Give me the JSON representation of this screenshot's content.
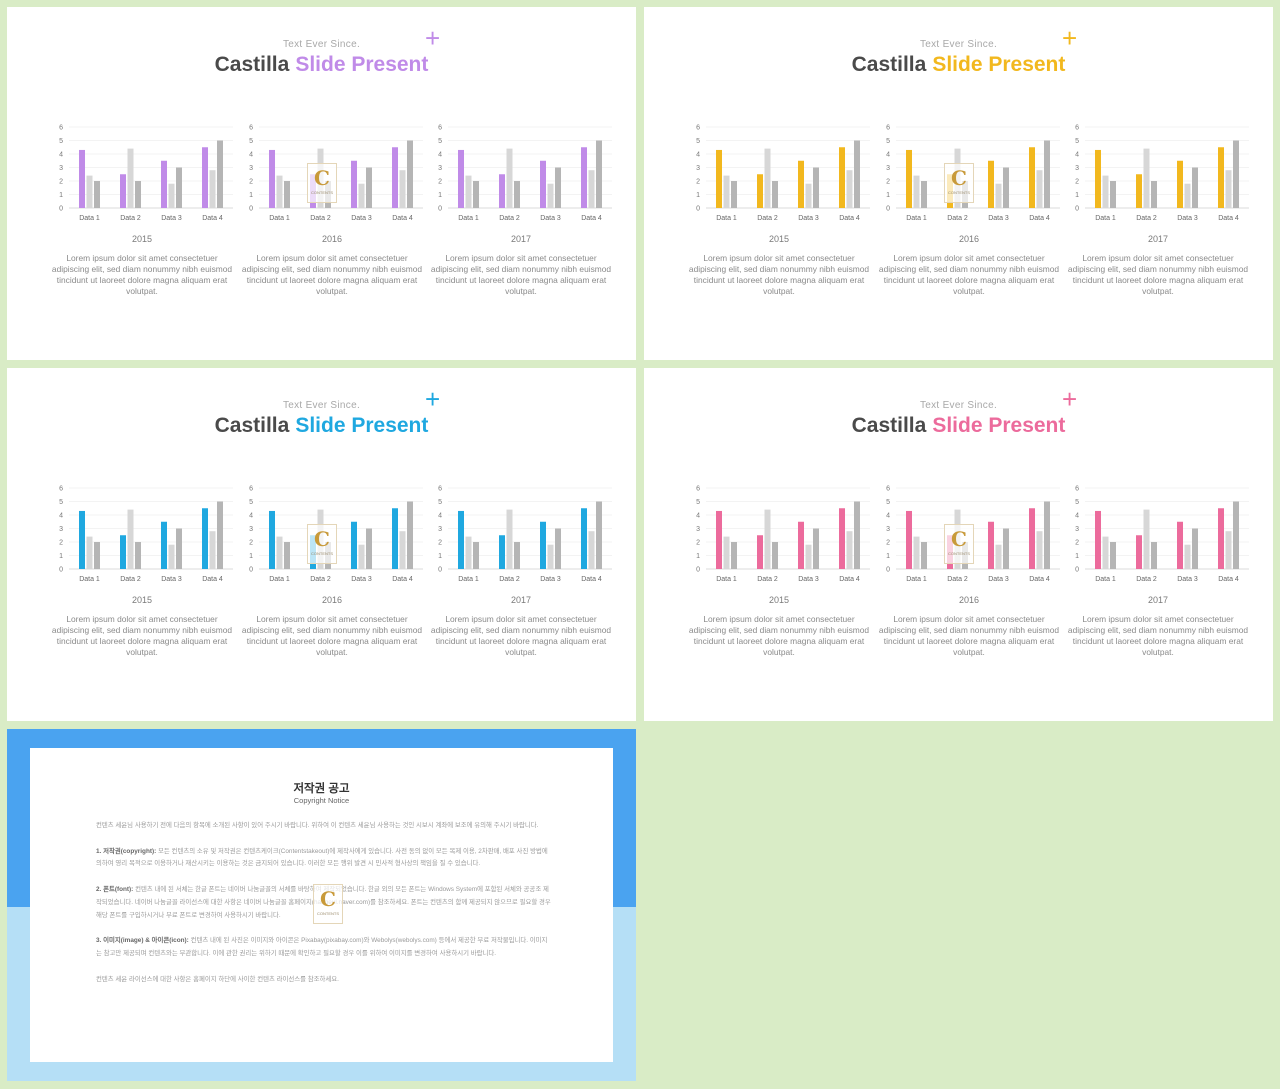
{
  "slides": [
    {
      "subtitle": "Text Ever Since.",
      "title_main": "Castilla",
      "title_accent": "Slide Present",
      "accent": "#c08be8",
      "plus": "+"
    },
    {
      "subtitle": "Text Ever Since.",
      "title_main": "Castilla",
      "title_accent": "Slide Present",
      "accent": "#f2b81e",
      "plus": "+"
    },
    {
      "subtitle": "Text Ever Since.",
      "title_main": "Castilla",
      "title_accent": "Slide Present",
      "accent": "#1fa8e0",
      "plus": "+"
    },
    {
      "subtitle": "Text Ever Since.",
      "title_main": "Castilla",
      "title_accent": "Slide Present",
      "accent": "#ec6b9c",
      "plus": "+"
    }
  ],
  "panels": [
    {
      "year": "2015",
      "text": "Lorem ipsum dolor sit amet consectetuer adipiscing elit, sed diam nonummy nibh euismod tincidunt ut laoreet dolore magna aliquam erat volutpat."
    },
    {
      "year": "2016",
      "text": "Lorem ipsum dolor sit amet consectetuer adipiscing elit, sed diam nonummy nibh euismod tincidunt ut laoreet dolore magna aliquam erat volutpat."
    },
    {
      "year": "2017",
      "text": "Lorem ipsum dolor sit amet consectetuer adipiscing elit, sed diam nonummy nibh euismod tincidunt ut laoreet dolore magna aliquam erat volutpat."
    }
  ],
  "watermark": {
    "letter": "C",
    "text": "CONTENTS"
  },
  "chart_data": {
    "type": "bar",
    "categories": [
      "Data 1",
      "Data 2",
      "Data 3",
      "Data 4"
    ],
    "series": [
      {
        "values": [
          4.3,
          2.5,
          3.5,
          4.5
        ],
        "color": "accent"
      },
      {
        "values": [
          2.4,
          4.4,
          1.8,
          2.8
        ],
        "color": "#d7d7d7"
      },
      {
        "values": [
          2.0,
          2.0,
          3.0,
          5.0
        ],
        "color": "#b5b5b5"
      }
    ],
    "ylim": [
      0,
      6
    ],
    "yticks": [
      "0",
      "1",
      "2",
      "3",
      "4",
      "5",
      "6"
    ],
    "grid": true
  },
  "notice": {
    "title": "저작권 공고",
    "subtitle": "Copyright Notice",
    "intro": "컨텐츠 세윤님 사용하기 전에 다음의 항목에 소개된 사항이 있어 주시기 바랍니다. 위하여 이 컨텐츠 세윤님 사용하는 것인 시보시 계좌에 보조에 유의해 주시기 바랍니다.",
    "sections": [
      {
        "head": "1. 저작권(copyright):",
        "body": " 모든 컨텐츠의 소유 및 저작권은 컨텐츠케이크(Contentstakeout)에 제작사에게 있습니다. 사전 동의 없이 모든 복제 이용, 2차판매, 배포 사진 방법에 의하여 영리 목적으로 이용하거나 재산시키는 이용하는 것은 금지되어 있습니다. 이러한 모든 행위 발견 시 민사적 형사상의 책임을 질 수 있습니다."
      },
      {
        "head": "2. 폰트(font):",
        "body": " 컨텐츠 내에 된 서체는 한글 폰트는 네이버 나눔글꼴의 서체를 바탕하여 제작되었습니다. 한글 외의 모든 폰트는 Windows System에 포함된 서체와 공공조 제작되었습니다. 네이버 나눔글꼴 라이선스에 대한 사항은 네이버 나눔글꼴 홈페이지(hangeul.naver.com)를 참조하세요. 폰트는 컨텐츠의 함께 제공되지 않으므로 필요할 경우 해당 폰트를 구입하시거나 무료 폰트로 변경하여 사용하시기 바랍니다."
      },
      {
        "head": "3. 이미지(image) & 아이콘(icon):",
        "body": " 컨텐츠 내에 된 사진은 이미지와 아이콘은 Pixabay(pixabay.com)와 Webolys(webolys.com) 등에서 제공한 무료 저작물입니다. 이미지는 참고만 제공되며 컨텐츠와는 무관합니다. 이에 관한 권리는 위하기 때문에 확인하고 필요할 경우 이를 위하여 이미지를 변경하여 사용하시기 바랍니다."
      }
    ],
    "footer": "컨텐츠 세윤 라이선스에 대한 사항은 홈페이지 하단에 사이한 컨텐츠 라이선스를 참조하세요."
  }
}
